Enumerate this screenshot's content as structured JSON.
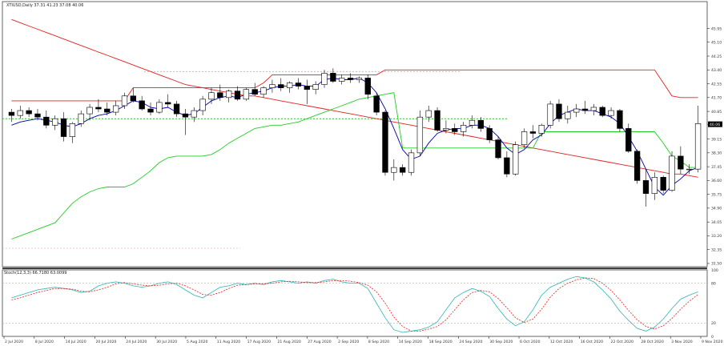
{
  "header": {
    "main_title": "XTIUSD,Daily  37.31 41.23 37.08 40.06",
    "stoch_title": "Stoch(12,3,3) 66.7180 63.0099"
  },
  "colors": {
    "bull_body": "#ffffff",
    "bear_body": "#000000",
    "candle_edge": "#000000",
    "red": "#e82020",
    "green": "#22cc22",
    "blue": "#3399ff",
    "navy": "#0000aa",
    "stoch_main": "#2bb5b5",
    "stoch_signal": "#e82020",
    "grid_dot": "#e8a0a0",
    "axis_bg": "#ffffff"
  },
  "chart_data": [
    {
      "type": "candlestick",
      "symbol": "XTIUSD",
      "timeframe": "Daily",
      "last_price": 40.06,
      "ylim": [
        31.3,
        47.6
      ],
      "y_ticks": [
        "45.95",
        "45.10",
        "44.25",
        "43.40",
        "42.55",
        "41.70",
        "40.85",
        "40.06",
        "39.15",
        "38.30",
        "37.45",
        "36.60",
        "35.75",
        "34.90",
        "34.05",
        "33.20",
        "32.35",
        "31.50"
      ],
      "x_ticks": [
        "2 Jul 2020",
        "8 Jul 2020",
        "14 Jul 2020",
        "20 Jul 2020",
        "24 Jul 2020",
        "30 Jul 2020",
        "5 Aug 2020",
        "11 Aug 2020",
        "17 Aug 2020",
        "21 Aug 2020",
        "27 Aug 2020",
        "2 Sep 2020",
        "8 Sep 2020",
        "14 Sep 2020",
        "18 Sep 2020",
        "24 Sep 2020",
        "30 Sep 2020",
        "6 Oct 2020",
        "12 Oct 2020",
        "16 Oct 2020",
        "22 Oct 2020",
        "28 Oct 2020",
        "3 Nov 2020",
        "9 Nov 2020"
      ],
      "ohlc": [
        [
          40.8,
          41.0,
          40.2,
          40.6
        ],
        [
          40.6,
          41.2,
          40.4,
          40.9
        ],
        [
          40.9,
          41.1,
          40.5,
          40.7
        ],
        [
          40.7,
          41.0,
          40.3,
          40.5
        ],
        [
          40.5,
          40.9,
          39.8,
          40.0
        ],
        [
          40.0,
          40.6,
          39.7,
          40.4
        ],
        [
          40.4,
          40.8,
          39.0,
          39.3
        ],
        [
          39.3,
          40.2,
          38.9,
          40.1
        ],
        [
          40.1,
          40.9,
          39.9,
          40.7
        ],
        [
          40.7,
          41.3,
          40.3,
          41.1
        ],
        [
          41.1,
          41.6,
          40.8,
          41.0
        ],
        [
          41.0,
          41.4,
          40.6,
          40.8
        ],
        [
          40.8,
          41.5,
          40.6,
          41.2
        ],
        [
          41.2,
          42.0,
          41.0,
          41.8
        ],
        [
          41.8,
          42.3,
          41.4,
          41.5
        ],
        [
          41.5,
          41.8,
          40.9,
          41.0
        ],
        [
          41.0,
          41.4,
          40.6,
          40.8
        ],
        [
          40.8,
          41.6,
          40.7,
          41.4
        ],
        [
          41.4,
          41.9,
          41.1,
          41.3
        ],
        [
          41.3,
          41.5,
          40.5,
          40.7
        ],
        [
          40.7,
          41.0,
          39.4,
          40.5
        ],
        [
          40.5,
          41.1,
          40.2,
          40.9
        ],
        [
          40.9,
          41.8,
          40.6,
          41.6
        ],
        [
          41.6,
          42.3,
          41.3,
          42.0
        ],
        [
          42.0,
          42.5,
          41.5,
          41.7
        ],
        [
          41.7,
          42.2,
          41.4,
          42.1
        ],
        [
          42.1,
          42.4,
          41.5,
          41.6
        ],
        [
          41.6,
          42.3,
          41.5,
          42.2
        ],
        [
          42.2,
          42.6,
          41.8,
          41.9
        ],
        [
          41.9,
          42.4,
          41.7,
          42.3
        ],
        [
          42.3,
          42.8,
          42.0,
          42.5
        ],
        [
          42.5,
          42.9,
          42.1,
          42.3
        ],
        [
          42.3,
          42.7,
          42.0,
          42.6
        ],
        [
          42.6,
          42.9,
          42.2,
          42.4
        ],
        [
          42.4,
          42.8,
          41.3,
          42.2
        ],
        [
          42.2,
          42.7,
          41.9,
          42.5
        ],
        [
          42.5,
          43.4,
          42.3,
          43.2
        ],
        [
          43.2,
          43.5,
          42.6,
          42.7
        ],
        [
          42.7,
          43.1,
          42.5,
          42.9
        ],
        [
          42.9,
          43.2,
          42.6,
          42.8
        ],
        [
          42.8,
          43.0,
          42.6,
          42.9
        ],
        [
          42.9,
          43.1,
          41.6,
          41.9
        ],
        [
          41.8,
          42.0,
          40.6,
          40.8
        ],
        [
          40.8,
          40.9,
          36.9,
          37.1
        ],
        [
          37.1,
          37.9,
          36.6,
          37.4
        ],
        [
          37.4,
          37.6,
          36.9,
          37.1
        ],
        [
          37.1,
          38.5,
          36.9,
          38.3
        ],
        [
          38.3,
          40.9,
          38.1,
          40.5
        ],
        [
          40.5,
          41.2,
          40.2,
          40.9
        ],
        [
          40.9,
          41.1,
          39.6,
          39.7
        ],
        [
          39.7,
          40.3,
          39.5,
          39.8
        ],
        [
          39.8,
          40.1,
          39.4,
          39.6
        ],
        [
          39.6,
          40.2,
          39.3,
          40.0
        ],
        [
          40.0,
          40.6,
          39.8,
          40.3
        ],
        [
          40.3,
          40.5,
          39.6,
          39.8
        ],
        [
          39.8,
          40.0,
          38.9,
          39.1
        ],
        [
          39.1,
          39.3,
          37.9,
          38.0
        ],
        [
          38.0,
          38.4,
          36.8,
          37.0
        ],
        [
          37.0,
          39.0,
          36.9,
          38.8
        ],
        [
          38.8,
          39.8,
          38.6,
          39.6
        ],
        [
          39.6,
          40.0,
          39.2,
          39.5
        ],
        [
          39.5,
          40.1,
          39.3,
          40.0
        ],
        [
          40.0,
          41.5,
          39.8,
          41.3
        ],
        [
          41.3,
          41.6,
          40.2,
          40.4
        ],
        [
          40.4,
          41.2,
          40.1,
          40.8
        ],
        [
          40.8,
          41.3,
          40.5,
          41.0
        ],
        [
          41.0,
          41.5,
          40.7,
          40.9
        ],
        [
          40.9,
          41.3,
          40.6,
          41.1
        ],
        [
          41.1,
          41.2,
          40.5,
          40.6
        ],
        [
          40.6,
          41.1,
          40.4,
          40.9
        ],
        [
          40.9,
          41.0,
          39.6,
          39.8
        ],
        [
          39.8,
          40.1,
          38.3,
          38.4
        ],
        [
          38.4,
          38.5,
          36.4,
          36.6
        ],
        [
          36.6,
          37.3,
          35.0,
          35.8
        ],
        [
          35.8,
          37.1,
          35.4,
          36.8
        ],
        [
          36.8,
          36.9,
          35.8,
          36.0
        ],
        [
          36.0,
          38.4,
          35.9,
          38.1
        ],
        [
          38.1,
          38.7,
          37.0,
          37.3
        ],
        [
          37.3,
          37.6,
          37.0,
          37.3
        ],
        [
          37.3,
          41.2,
          37.1,
          40.1
        ]
      ],
      "overlay_series": [
        {
          "color": "red",
          "values": [
            46.5,
            46.3,
            46.1,
            45.9,
            45.7,
            45.5,
            45.3,
            45.1,
            44.9,
            44.7,
            44.5,
            44.3,
            44.1,
            43.9,
            43.7,
            43.5,
            43.3,
            43.1,
            42.9,
            42.7,
            42.5,
            42.4,
            42.3,
            42.2,
            42.1,
            42.0,
            41.9,
            41.8,
            41.8,
            41.7,
            41.6,
            41.5,
            41.4,
            41.3,
            41.2,
            41.1,
            41.0,
            40.9,
            40.8,
            40.7,
            40.6,
            40.5,
            40.4,
            40.3,
            40.2,
            40.1,
            40.0,
            39.9,
            39.8,
            39.7,
            39.6,
            39.5,
            39.4,
            39.3,
            39.2,
            39.1,
            39.0,
            38.9,
            38.8,
            38.7,
            38.6,
            38.5,
            38.4,
            38.3,
            38.2,
            38.1,
            38.0,
            37.9,
            37.8,
            37.7,
            37.6,
            37.5,
            37.4,
            37.3,
            37.2,
            37.1,
            37.0,
            37.0,
            36.9,
            36.8
          ]
        },
        {
          "color": "red",
          "values": [
            41.5,
            41.5,
            41.5,
            41.5,
            41.5,
            41.5,
            41.5,
            41.5,
            41.5,
            41.5,
            41.5,
            41.5,
            41.5,
            41.5,
            42.3,
            42.3,
            42.3,
            42.3,
            42.3,
            42.3,
            42.3,
            42.3,
            42.3,
            42.3,
            42.3,
            42.3,
            42.3,
            42.3,
            42.3,
            42.6,
            43.1,
            43.1,
            43.1,
            43.1,
            43.1,
            43.1,
            43.1,
            43.1,
            43.1,
            43.1,
            43.1,
            43.1,
            43.1,
            43.4,
            43.4,
            43.4,
            43.4,
            43.4,
            43.4,
            43.4,
            43.4,
            43.4,
            43.4,
            43.4,
            43.4,
            43.4,
            43.4,
            43.4,
            43.4,
            43.4,
            43.4,
            43.4,
            43.4,
            43.4,
            43.4,
            43.4,
            43.4,
            43.4,
            43.4,
            43.4,
            43.4,
            43.4,
            43.4,
            43.4,
            43.4,
            42.6,
            41.8,
            41.7,
            41.7,
            41.7
          ]
        },
        {
          "color": "green",
          "values": [
            33.0,
            33.2,
            33.4,
            33.6,
            33.8,
            34.0,
            34.6,
            35.2,
            35.6,
            35.9,
            36.1,
            36.2,
            36.2,
            36.2,
            36.4,
            36.8,
            37.2,
            37.7,
            38.0,
            38.1,
            38.1,
            38.1,
            38.1,
            38.2,
            38.5,
            38.9,
            39.2,
            39.5,
            39.8,
            39.9,
            40.0,
            40.0,
            40.1,
            40.2,
            40.4,
            40.6,
            40.8,
            41.0,
            41.2,
            41.4,
            41.6,
            41.7,
            41.8,
            41.9,
            42.0,
            38.6,
            38.6,
            38.6,
            38.6,
            38.6,
            38.6,
            38.6,
            38.6,
            38.6,
            38.6,
            38.6,
            38.6,
            38.6,
            38.6,
            38.6,
            38.6,
            39.6,
            39.6,
            39.6,
            39.6,
            39.6,
            39.6,
            39.6,
            39.6,
            39.6,
            39.6,
            39.6,
            39.6,
            39.6,
            39.6,
            38.9,
            38.1,
            37.8,
            37.4,
            37.4
          ]
        },
        {
          "color": "navy",
          "values": [
            40.0,
            40.2,
            40.3,
            40.4,
            40.3,
            40.2,
            40.0,
            39.9,
            40.1,
            40.4,
            40.6,
            40.7,
            40.9,
            41.2,
            41.5,
            41.4,
            41.1,
            41.0,
            41.1,
            40.8,
            40.6,
            40.7,
            41.1,
            41.5,
            41.7,
            41.8,
            41.7,
            41.9,
            42.0,
            42.1,
            42.3,
            42.4,
            42.4,
            42.5,
            42.4,
            42.4,
            42.8,
            42.9,
            42.8,
            42.8,
            42.9,
            42.6,
            42.0,
            41.0,
            39.8,
            38.5,
            37.9,
            38.1,
            38.9,
            39.5,
            39.7,
            39.8,
            39.8,
            40.0,
            40.0,
            39.8,
            39.3,
            38.6,
            38.2,
            38.5,
            39.1,
            39.4,
            40.1,
            40.6,
            40.8,
            41.0,
            40.9,
            40.9,
            40.7,
            40.5,
            40.1,
            39.3,
            38.4,
            37.3,
            36.2,
            35.7,
            36.3,
            36.7,
            37.2,
            37.4
          ]
        }
      ]
    },
    {
      "type": "line",
      "title": "Stoch(12,3,3) 66.7180 63.0099",
      "ylim": [
        0,
        100
      ],
      "y_ticks": [
        "100",
        "80",
        "20",
        "0"
      ],
      "levels": [
        80,
        20
      ],
      "series": [
        {
          "name": "main",
          "color": "stoch_main",
          "values": [
            58,
            62,
            66,
            70,
            72,
            74,
            72,
            70,
            66,
            68,
            76,
            80,
            82,
            80,
            76,
            74,
            76,
            80,
            82,
            78,
            70,
            62,
            58,
            66,
            74,
            76,
            80,
            78,
            80,
            78,
            82,
            84,
            82,
            80,
            82,
            80,
            84,
            86,
            82,
            80,
            80,
            72,
            50,
            28,
            10,
            6,
            8,
            10,
            14,
            22,
            40,
            58,
            66,
            72,
            68,
            60,
            42,
            26,
            16,
            22,
            40,
            62,
            74,
            80,
            86,
            90,
            88,
            82,
            70,
            56,
            38,
            24,
            12,
            8,
            14,
            26,
            42,
            56,
            62,
            67
          ]
        },
        {
          "name": "signal",
          "color": "stoch_signal",
          "values": [
            55,
            58,
            62,
            66,
            69,
            72,
            72,
            71,
            68,
            67,
            70,
            74,
            79,
            81,
            79,
            77,
            76,
            77,
            79,
            80,
            76,
            70,
            63,
            62,
            66,
            72,
            77,
            78,
            79,
            79,
            80,
            82,
            83,
            82,
            81,
            81,
            82,
            84,
            84,
            83,
            81,
            77,
            67,
            50,
            29,
            15,
            8,
            8,
            11,
            15,
            25,
            40,
            55,
            66,
            69,
            67,
            57,
            43,
            28,
            21,
            26,
            41,
            59,
            72,
            80,
            85,
            88,
            87,
            80,
            69,
            55,
            39,
            25,
            15,
            11,
            16,
            27,
            41,
            53,
            63
          ]
        }
      ]
    }
  ]
}
